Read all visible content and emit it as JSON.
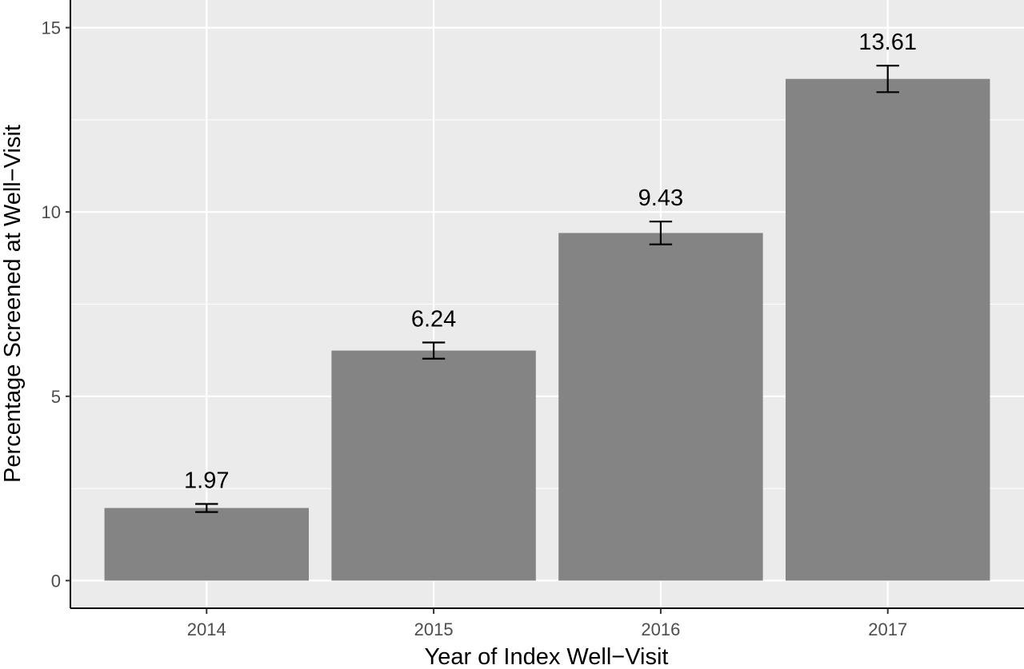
{
  "chart_data": {
    "type": "bar",
    "title": "",
    "xlabel": "Year of Index Well−Visit",
    "ylabel": "Percentage Screened at Well−Visit",
    "categories": [
      "2014",
      "2015",
      "2016",
      "2017"
    ],
    "values": [
      1.97,
      6.24,
      9.43,
      13.61
    ],
    "value_labels": [
      "1.97",
      "6.24",
      "9.43",
      "13.61"
    ],
    "error_bars": [
      {
        "low": 1.86,
        "high": 2.08
      },
      {
        "low": 6.02,
        "high": 6.46
      },
      {
        "low": 9.12,
        "high": 9.74
      },
      {
        "low": 13.25,
        "high": 13.97
      }
    ],
    "ylim": [
      -0.75,
      15.75
    ],
    "yticks": [
      0,
      5,
      10,
      15
    ],
    "ytick_labels": [
      "0",
      "5",
      "10",
      "15"
    ],
    "grid": true,
    "legend": "none",
    "colors": {
      "bar": "#848484",
      "panel": "#ebebeb",
      "grid": "#ffffff",
      "axis": "#000000",
      "error_bar": "#000000"
    }
  }
}
